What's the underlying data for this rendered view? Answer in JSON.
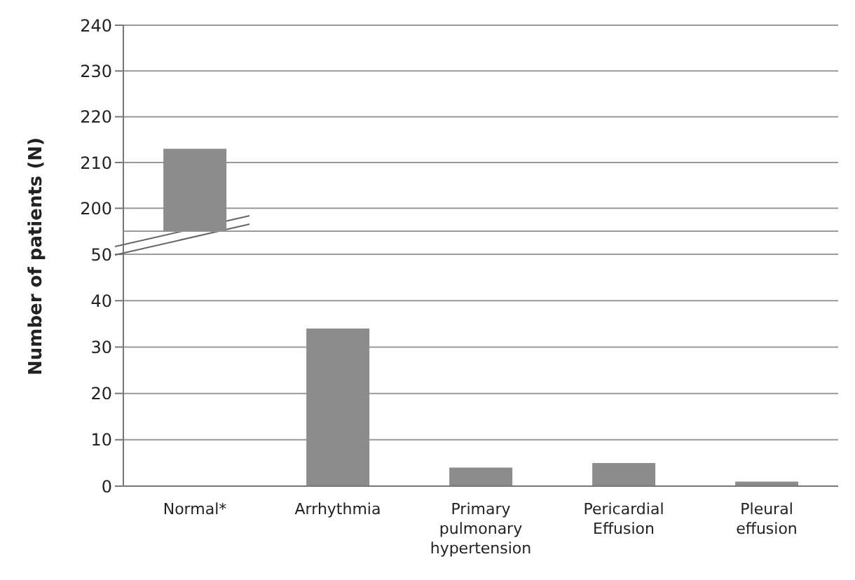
{
  "chart_data": [
    {
      "type": "bar",
      "ylabel": "Number of patients (N)",
      "series": [
        {
          "color": "#8c8c8c",
          "values": [
            213,
            null,
            null,
            null,
            null
          ]
        }
      ],
      "ylim": [
        195,
        240
      ],
      "yticks": [
        200,
        210,
        220,
        230,
        240
      ],
      "grid": "y",
      "legend": false,
      "tick_labels": "y"
    },
    {
      "type": "bar",
      "categories": [
        "Normal*",
        "Arrhythmia",
        "Primary pulmonary hypertension",
        "Pericardial Effusion",
        "Pleural effusion"
      ],
      "series": [
        {
          "color": "#8c8c8c",
          "values": [
            null,
            34,
            4,
            5,
            1
          ]
        }
      ],
      "ylim": [
        0,
        55
      ],
      "yticks": [
        0,
        10,
        20,
        30,
        40,
        50
      ],
      "grid": "y",
      "legend": false
    }
  ]
}
